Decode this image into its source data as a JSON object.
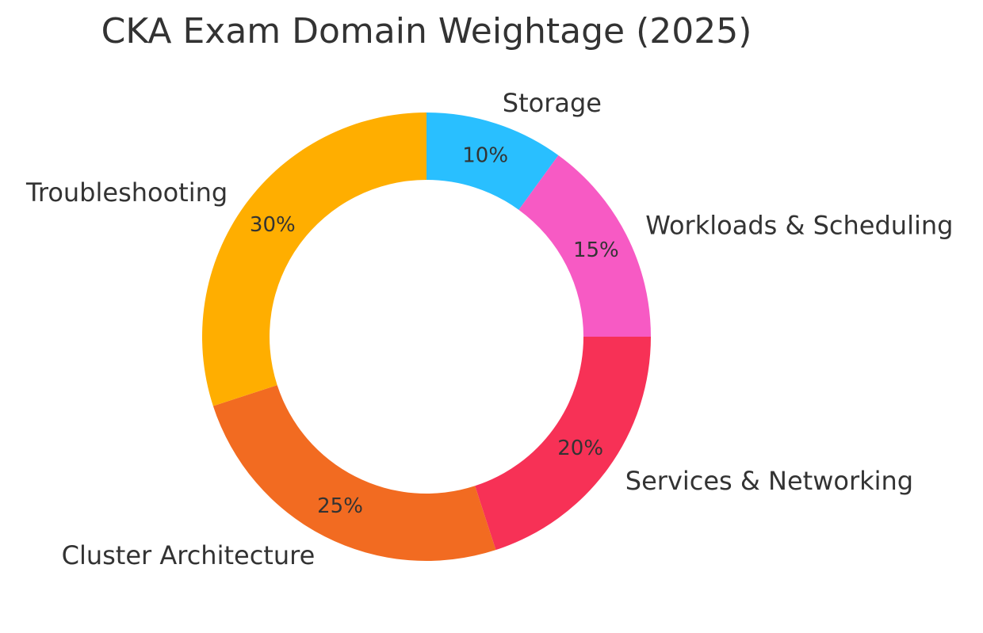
{
  "chart_data": {
    "type": "pie",
    "title": "CKA Exam Domain Weightage (2025)",
    "donut": true,
    "start_angle_deg": 90,
    "direction": "clockwise",
    "slices": [
      {
        "label": "Storage",
        "value": 10,
        "percent_label": "10%",
        "color": "#29BFFF"
      },
      {
        "label": "Workloads & Scheduling",
        "value": 15,
        "percent_label": "15%",
        "color": "#F75AC4"
      },
      {
        "label": "Services & Networking",
        "value": 20,
        "percent_label": "20%",
        "color": "#F73156"
      },
      {
        "label": "Cluster Architecture",
        "value": 25,
        "percent_label": "25%",
        "color": "#F26B21"
      },
      {
        "label": "Troubleshooting",
        "value": 30,
        "percent_label": "30%",
        "color": "#FFAE00"
      }
    ]
  }
}
